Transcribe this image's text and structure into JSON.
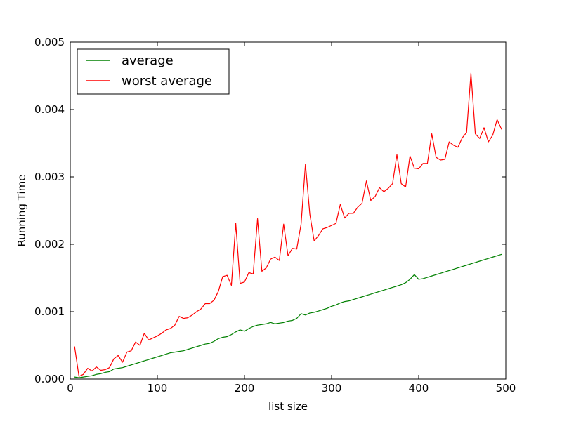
{
  "chart_data": {
    "type": "line",
    "title": "",
    "xlabel": "list size",
    "ylabel": "Running Time",
    "xlim": [
      0,
      500
    ],
    "ylim": [
      0,
      0.005
    ],
    "grid": false,
    "legend_position": "top-left",
    "x_ticks": [
      {
        "value": 0,
        "label": "0"
      },
      {
        "value": 100,
        "label": "100"
      },
      {
        "value": 200,
        "label": "200"
      },
      {
        "value": 300,
        "label": "300"
      },
      {
        "value": 400,
        "label": "400"
      },
      {
        "value": 500,
        "label": "500"
      }
    ],
    "y_ticks": [
      {
        "value": 0,
        "label": "0.000"
      },
      {
        "value": 0.001,
        "label": "0.001"
      },
      {
        "value": 0.002,
        "label": "0.002"
      },
      {
        "value": 0.003,
        "label": "0.003"
      },
      {
        "value": 0.004,
        "label": "0.004"
      },
      {
        "value": 0.005,
        "label": "0.005"
      }
    ],
    "x": [
      5,
      10,
      15,
      20,
      25,
      30,
      35,
      40,
      45,
      50,
      55,
      60,
      65,
      70,
      75,
      80,
      85,
      90,
      95,
      100,
      105,
      110,
      115,
      120,
      125,
      130,
      135,
      140,
      145,
      150,
      155,
      160,
      165,
      170,
      175,
      180,
      185,
      190,
      195,
      200,
      205,
      210,
      215,
      220,
      225,
      230,
      235,
      240,
      245,
      250,
      255,
      260,
      265,
      270,
      275,
      280,
      285,
      290,
      295,
      300,
      305,
      310,
      315,
      320,
      325,
      330,
      335,
      340,
      345,
      350,
      355,
      360,
      365,
      370,
      375,
      380,
      385,
      390,
      395,
      400,
      405,
      410,
      415,
      420,
      425,
      430,
      435,
      440,
      445,
      450,
      455,
      460,
      465,
      470,
      475,
      480,
      485,
      490,
      495
    ],
    "series": [
      {
        "name": "average",
        "color": "#008000",
        "values": [
          3e-05,
          2e-05,
          3e-05,
          4e-05,
          5e-05,
          7e-05,
          8e-05,
          0.0001,
          0.00011,
          0.00015,
          0.00016,
          0.00017,
          0.00019,
          0.00021,
          0.00023,
          0.00025,
          0.00027,
          0.00029,
          0.00031,
          0.00033,
          0.00035,
          0.00037,
          0.00039,
          0.0004,
          0.00041,
          0.00042,
          0.00044,
          0.00046,
          0.00048,
          0.0005,
          0.00052,
          0.00053,
          0.00056,
          0.0006,
          0.00062,
          0.00063,
          0.00066,
          0.0007,
          0.00073,
          0.00071,
          0.00075,
          0.00078,
          0.0008,
          0.00081,
          0.00082,
          0.00084,
          0.00082,
          0.00083,
          0.00084,
          0.00086,
          0.00087,
          0.0009,
          0.00097,
          0.00095,
          0.00098,
          0.00099,
          0.00101,
          0.00103,
          0.00105,
          0.00108,
          0.0011,
          0.00113,
          0.00115,
          0.00116,
          0.00118,
          0.0012,
          0.00122,
          0.00124,
          0.00126,
          0.00128,
          0.0013,
          0.00132,
          0.00134,
          0.00136,
          0.00138,
          0.0014,
          0.00143,
          0.00148,
          0.00155,
          0.00148,
          0.00149,
          0.00151,
          0.00153,
          0.00155,
          0.00157,
          0.00159,
          0.00161,
          0.00163,
          0.00165,
          0.00167,
          0.00169,
          0.00171,
          0.00173,
          0.00175,
          0.00177,
          0.00179,
          0.00181,
          0.00183,
          0.00185
        ]
      },
      {
        "name": "worst average",
        "color": "#ff0000",
        "values": [
          0.00048,
          4e-05,
          7e-05,
          0.00016,
          0.00012,
          0.00018,
          0.00013,
          0.00014,
          0.00017,
          0.0003,
          0.00035,
          0.00025,
          0.0004,
          0.00042,
          0.00055,
          0.0005,
          0.00068,
          0.00058,
          0.00061,
          0.00064,
          0.00068,
          0.00073,
          0.00075,
          0.0008,
          0.00093,
          0.0009,
          0.00091,
          0.00095,
          0.001,
          0.00104,
          0.00112,
          0.00112,
          0.00117,
          0.0013,
          0.00152,
          0.00154,
          0.00139,
          0.00231,
          0.00142,
          0.00144,
          0.00158,
          0.00156,
          0.00238,
          0.0016,
          0.00165,
          0.00178,
          0.00181,
          0.00176,
          0.0023,
          0.00183,
          0.00194,
          0.00193,
          0.0023,
          0.00319,
          0.00245,
          0.00205,
          0.00213,
          0.00223,
          0.00225,
          0.00228,
          0.00231,
          0.00259,
          0.00239,
          0.00246,
          0.00246,
          0.00255,
          0.00261,
          0.00294,
          0.00265,
          0.00271,
          0.00284,
          0.00278,
          0.00283,
          0.0029,
          0.00333,
          0.0029,
          0.00285,
          0.00331,
          0.00313,
          0.00312,
          0.0032,
          0.0032,
          0.00364,
          0.00329,
          0.00325,
          0.00326,
          0.00352,
          0.00347,
          0.00344,
          0.00358,
          0.00366,
          0.00454,
          0.00364,
          0.00357,
          0.00373,
          0.00352,
          0.00362,
          0.00385,
          0.00371
        ]
      }
    ]
  }
}
